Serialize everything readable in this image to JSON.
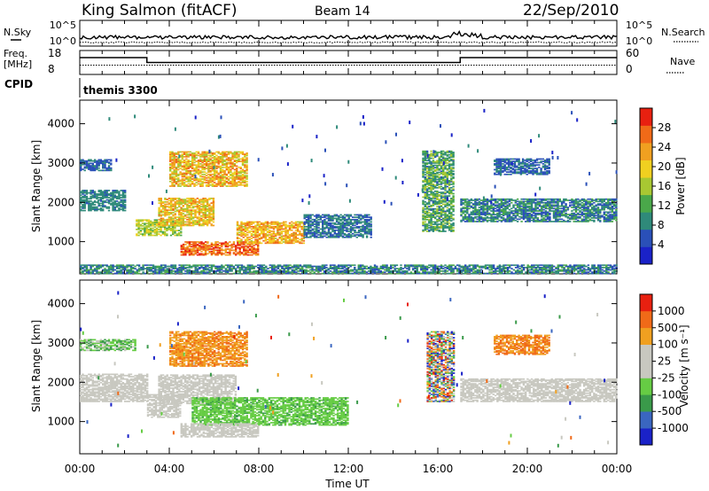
{
  "header": {
    "station": "King Salmon (fitACF)",
    "beam": "Beam 14",
    "date": "22/Sep/2010"
  },
  "noise_panel": {
    "left_label": "N.Sky",
    "right_label": "N.Search",
    "ticks": [
      "10^5",
      "10^0"
    ]
  },
  "freq_panel": {
    "left_label_1": "Freq.",
    "left_label_2": "[MHz]",
    "left_ticks": [
      "18",
      "8"
    ],
    "right_label": "Nave",
    "right_ticks": [
      "60",
      "0"
    ]
  },
  "cpid": {
    "label": "CPID",
    "value": "themis 3300"
  },
  "colors": {
    "power": [
      "#1a22c8",
      "#2a50b8",
      "#2f8a7a",
      "#4aa84a",
      "#a8c832",
      "#f0d020",
      "#f0a020",
      "#f06a18",
      "#e82010"
    ],
    "velocity": [
      "#1a22c8",
      "#3a66c0",
      "#3a9a4a",
      "#66cc44",
      "#c8c8c0",
      "#c8c8c0",
      "#f0a020",
      "#f06a18",
      "#e82010"
    ]
  },
  "chart_data": [
    {
      "type": "heatmap",
      "quantity": "power",
      "ylabel": "Slant Range [km]",
      "ylim": [
        180,
        4600
      ],
      "yticks": [
        "4000",
        "3000",
        "2000",
        "1000"
      ],
      "xlim": [
        0,
        24
      ],
      "colorbar": {
        "label": "Power [dB]",
        "ticks": [
          "28",
          "24",
          "20",
          "16",
          "12",
          "8",
          "4"
        ],
        "range": [
          0,
          30
        ]
      },
      "echo_regions": [
        {
          "t": [
            0.0,
            2.0
          ],
          "r": [
            1780,
            2300
          ],
          "v": [
            6,
            10
          ]
        },
        {
          "t": [
            0.0,
            1.4
          ],
          "r": [
            2800,
            3100
          ],
          "v": [
            4,
            8
          ]
        },
        {
          "t": [
            2.5,
            4.5
          ],
          "r": [
            1150,
            1550
          ],
          "v": [
            12,
            18
          ]
        },
        {
          "t": [
            3.5,
            6.0
          ],
          "r": [
            1400,
            2100
          ],
          "v": [
            14,
            24
          ]
        },
        {
          "t": [
            4.0,
            7.5
          ],
          "r": [
            2400,
            3300
          ],
          "v": [
            14,
            26
          ]
        },
        {
          "t": [
            4.5,
            8.0
          ],
          "r": [
            650,
            1000
          ],
          "v": [
            20,
            30
          ]
        },
        {
          "t": [
            7.0,
            10.0
          ],
          "r": [
            950,
            1500
          ],
          "v": [
            16,
            26
          ]
        },
        {
          "t": [
            10.0,
            13.0
          ],
          "r": [
            1100,
            1700
          ],
          "v": [
            4,
            10
          ]
        },
        {
          "t": [
            15.3,
            16.7
          ],
          "r": [
            1250,
            3300
          ],
          "v": [
            6,
            16
          ]
        },
        {
          "t": [
            17.0,
            24.0
          ],
          "r": [
            1500,
            2100
          ],
          "v": [
            4,
            12
          ]
        },
        {
          "t": [
            18.5,
            21.0
          ],
          "r": [
            2700,
            3100
          ],
          "v": [
            4,
            8
          ]
        },
        {
          "t": [
            0.0,
            24.0
          ],
          "r": [
            180,
            420
          ],
          "v": [
            4,
            12
          ]
        }
      ]
    },
    {
      "type": "heatmap",
      "quantity": "velocity",
      "ylabel": "Slant Range [km]",
      "ylim": [
        180,
        4600
      ],
      "yticks": [
        "4000",
        "3000",
        "2000",
        "1000"
      ],
      "xlim": [
        0,
        24
      ],
      "xticks": [
        "00:00",
        "04:00",
        "08:00",
        "12:00",
        "16:00",
        "20:00",
        "00:00"
      ],
      "xlabel": "Time UT",
      "colorbar": {
        "label": "Velocity [m s⁻¹]",
        "ticks": [
          "1000",
          "500",
          "100",
          "25",
          "-25",
          "-100",
          "-500",
          "-1000"
        ]
      },
      "echo_regions": [
        {
          "t": [
            0.0,
            3.0
          ],
          "r": [
            1500,
            2200
          ],
          "class": "ground"
        },
        {
          "t": [
            3.0,
            4.5
          ],
          "r": [
            1100,
            1700
          ],
          "class": "ground"
        },
        {
          "t": [
            3.5,
            7.0
          ],
          "r": [
            1450,
            2200
          ],
          "class": "ground"
        },
        {
          "t": [
            17.0,
            24.0
          ],
          "r": [
            1500,
            2100
          ],
          "class": "ground"
        },
        {
          "t": [
            0.0,
            2.5
          ],
          "r": [
            2800,
            3100
          ],
          "class": "toward"
        },
        {
          "t": [
            4.0,
            7.5
          ],
          "r": [
            2400,
            3300
          ],
          "class": "away"
        },
        {
          "t": [
            5.0,
            12.0
          ],
          "r": [
            900,
            1600
          ],
          "class": "toward_slow"
        },
        {
          "t": [
            4.5,
            8.0
          ],
          "r": [
            600,
            950
          ],
          "class": "ground"
        },
        {
          "t": [
            18.5,
            21.0
          ],
          "r": [
            2700,
            3200
          ],
          "class": "away_fast"
        },
        {
          "t": [
            15.5,
            16.7
          ],
          "r": [
            1500,
            3300
          ],
          "class": "mixed"
        }
      ]
    }
  ]
}
